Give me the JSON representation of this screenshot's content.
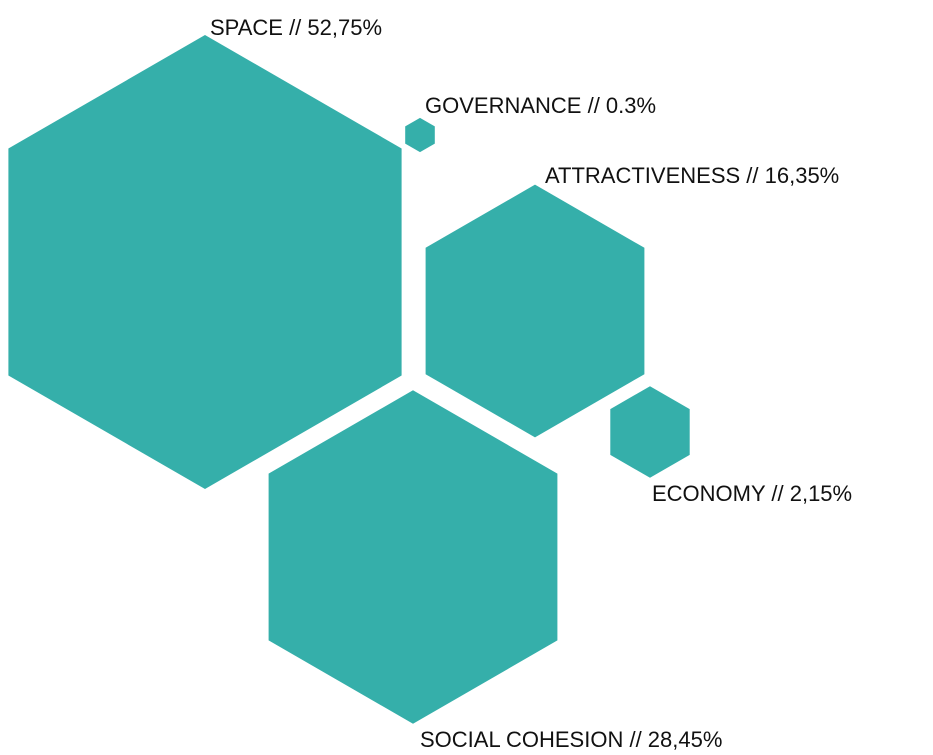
{
  "chart_data": {
    "type": "bubble",
    "title": "",
    "colors": {
      "hexagon": "#35afaa",
      "label": "#111111"
    },
    "items": [
      {
        "category": "SPACE",
        "value": 52.75,
        "label": "SPACE // 52,75%"
      },
      {
        "category": "GOVERNANCE",
        "value": 0.3,
        "label": "GOVERNANCE // 0.3%"
      },
      {
        "category": "ATTRACTIVENESS",
        "value": 16.35,
        "label": "ATTRACTIVENESS // 16,35%"
      },
      {
        "category": "ECONOMY",
        "value": 2.15,
        "label": "ECONOMY // 2,15%"
      },
      {
        "category": "SOCIAL COHESION",
        "value": 28.45,
        "label": "SOCIAL COHESION // 28,45%"
      }
    ]
  }
}
